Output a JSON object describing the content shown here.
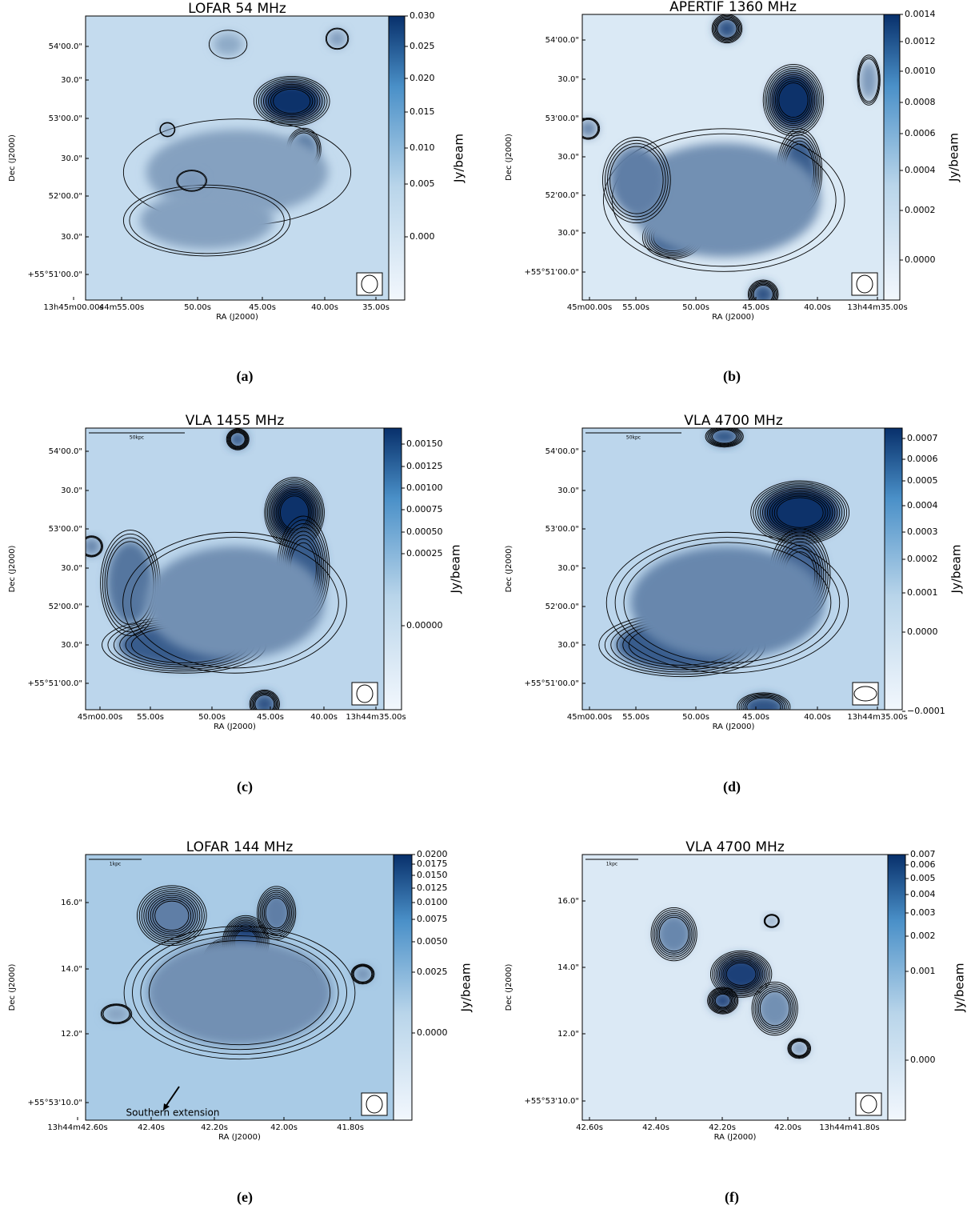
{
  "panels": [
    {
      "title": "LOFAR 54 MHz",
      "caption": "(a)",
      "x_label": "RA (J2000)",
      "y_label": "Dec (J2000)",
      "colorbar_label": "Jy/beam",
      "xticks": [
        "13h45m00.00s",
        "44m55.00s",
        "50.00s",
        "45.00s",
        "40.00s",
        "35.00s"
      ],
      "yticks": [
        "54'00.0\"",
        "30.0\"",
        "53'00.0\"",
        "30.0\"",
        "52'00.0\"",
        "30.0\"",
        "+55°51'00.0\""
      ],
      "colorbar_ticks": [
        "0.030",
        "0.025",
        "0.020",
        "0.015",
        "0.010",
        "0.005",
        "0.000"
      ]
    },
    {
      "title": "APERTIF 1360 MHz",
      "caption": "(b)",
      "x_label": "RA (J2000)",
      "y_label": "Dec (J2000)",
      "colorbar_label": "Jy/beam",
      "xticks": [
        "45m00.00s",
        "55.00s",
        "50.00s",
        "45.00s",
        "40.00s",
        "13h44m35.00s"
      ],
      "yticks": [
        "54'00.0\"",
        "30.0\"",
        "53'00.0\"",
        "30.0\"",
        "52'00.0\"",
        "30.0\"",
        "+55°51'00.0\""
      ],
      "colorbar_ticks": [
        "0.0014",
        "0.0012",
        "0.0010",
        "0.0008",
        "0.0006",
        "0.0004",
        "0.0002",
        "0.0000"
      ]
    },
    {
      "title": "VLA 1455 MHz",
      "caption": "(c)",
      "x_label": "RA (J2000)",
      "y_label": "Dec (J2000)",
      "colorbar_label": "Jy/beam",
      "scale_bar": "50kpc",
      "xticks": [
        "45m00.00s",
        "55.00s",
        "50.00s",
        "45.00s",
        "40.00s",
        "13h44m35.00s"
      ],
      "yticks": [
        "54'00.0\"",
        "30.0\"",
        "53'00.0\"",
        "30.0\"",
        "52'00.0\"",
        "30.0\"",
        "+55°51'00.0\""
      ],
      "colorbar_ticks": [
        "0.00150",
        "0.00125",
        "0.00100",
        "0.00075",
        "0.00050",
        "0.00025",
        "0.00000"
      ]
    },
    {
      "title": "VLA 4700 MHz",
      "caption": "(d)",
      "x_label": "RA (J2000)",
      "y_label": "Dec (J2000)",
      "colorbar_label": "Jy/beam",
      "scale_bar": "50kpc",
      "xticks": [
        "45m00.00s",
        "55.00s",
        "50.00s",
        "45.00s",
        "40.00s",
        "13h44m35.00s"
      ],
      "yticks": [
        "54'00.0\"",
        "30.0\"",
        "53'00.0\"",
        "30.0\"",
        "52'00.0\"",
        "30.0\"",
        "+55°51'00.0\""
      ],
      "colorbar_ticks": [
        "0.0007",
        "0.0006",
        "0.0005",
        "0.0004",
        "0.0003",
        "0.0002",
        "0.0001",
        "0.0000",
        "−0.0001"
      ]
    },
    {
      "title": "LOFAR 144 MHz",
      "caption": "(e)",
      "x_label": "RA (J2000)",
      "y_label": "Dec (J2000)",
      "colorbar_label": "Jy/beam",
      "scale_bar": "1kpc",
      "annotation": "Southern extension",
      "xticks": [
        "13h44m42.60s",
        "42.40s",
        "42.20s",
        "42.00s",
        "41.80s"
      ],
      "yticks": [
        "16.0\"",
        "14.0\"",
        "12.0\"",
        "+55°53'10.0\""
      ],
      "colorbar_ticks": [
        "0.0200",
        "0.0175",
        "0.0150",
        "0.0125",
        "0.0100",
        "0.0075",
        "0.0050",
        "0.0025",
        "0.0000"
      ]
    },
    {
      "title": "VLA 4700 MHz",
      "caption": "(f)",
      "x_label": "RA (J2000)",
      "y_label": "Dec (J2000)",
      "colorbar_label": "Jy/beam",
      "scale_bar": "1kpc",
      "xticks": [
        "42.60s",
        "42.40s",
        "42.20s",
        "42.00s",
        "13h44m41.80s"
      ],
      "yticks": [
        "16.0\"",
        "14.0\"",
        "12.0\"",
        "+55°53'10.0\""
      ],
      "colorbar_ticks": [
        "0.007",
        "0.006",
        "0.005",
        "0.004",
        "0.003",
        "0.002",
        "0.001",
        "0.000"
      ]
    }
  ]
}
